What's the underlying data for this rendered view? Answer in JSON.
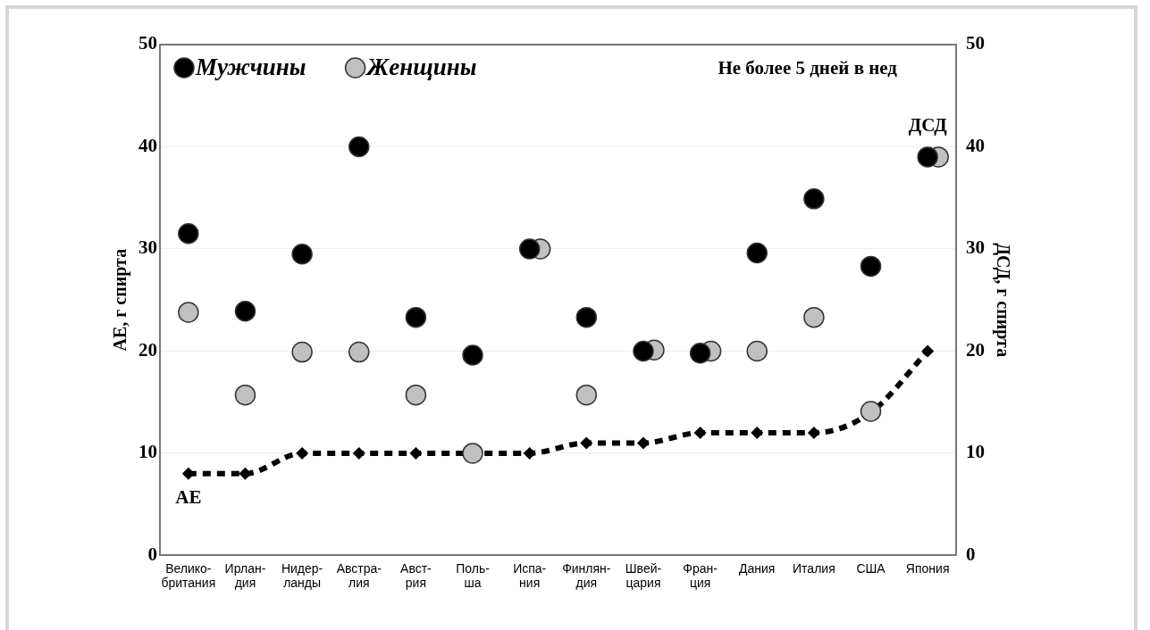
{
  "chart_data": {
    "type": "scatter",
    "categories": [
      "Велико-\nбритания",
      "Ирлан-\nдия",
      "Нидер-\nланды",
      "Австра-\nлия",
      "Авст-\nрия",
      "Поль-\nша",
      "Испа-\nния",
      "Финлян-\nдия",
      "Швей-\nцария",
      "Фран-\nция",
      "Дания",
      "Италия",
      "США",
      "Япония"
    ],
    "ylabel": "АЕ, г спирта",
    "y2label": "ДСД, г спирта",
    "ylim": [
      0,
      50
    ],
    "yticks": [
      0,
      10,
      20,
      30,
      40,
      50
    ],
    "y2lim": [
      0,
      50
    ],
    "y2ticks": [
      0,
      10,
      20,
      30,
      40,
      50
    ],
    "grid": "y",
    "legend": "top left",
    "series": [
      {
        "name": "Мужчины",
        "marker": "circle",
        "color": "#000000",
        "values": [
          31.5,
          23.9,
          29.5,
          40,
          23.3,
          19.6,
          30,
          23.3,
          20,
          19.8,
          29.6,
          34.9,
          28.3,
          39
        ]
      },
      {
        "name": "Женщины",
        "marker": "circle",
        "color": "#c0c0c0",
        "values": [
          23.8,
          15.7,
          19.9,
          19.9,
          15.7,
          10,
          30,
          15.7,
          20.1,
          20,
          20,
          23.3,
          14.1,
          39
        ]
      },
      {
        "type": "line",
        "marker": "diamond",
        "line_style": "dashed",
        "color": "#000000",
        "values": [
          8,
          8,
          10,
          10,
          10,
          10,
          10,
          11,
          11,
          12,
          12,
          12,
          14,
          20
        ]
      }
    ],
    "annotations": [
      "Не более 5 дней в нед",
      "АЕ",
      "ДСД"
    ]
  }
}
